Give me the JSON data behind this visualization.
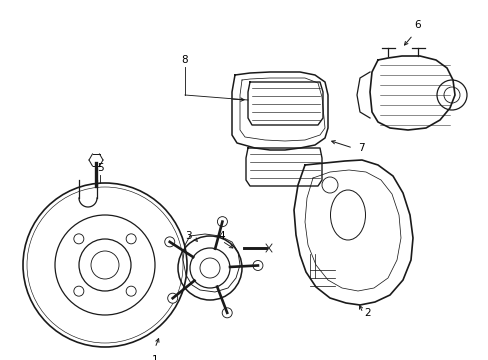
{
  "bg_color": "#ffffff",
  "line_color": "#1a1a1a",
  "lw": 0.9,
  "figsize": [
    4.89,
    3.6
  ],
  "dpi": 100,
  "xlim": [
    0,
    489
  ],
  "ylim": [
    0,
    360
  ]
}
